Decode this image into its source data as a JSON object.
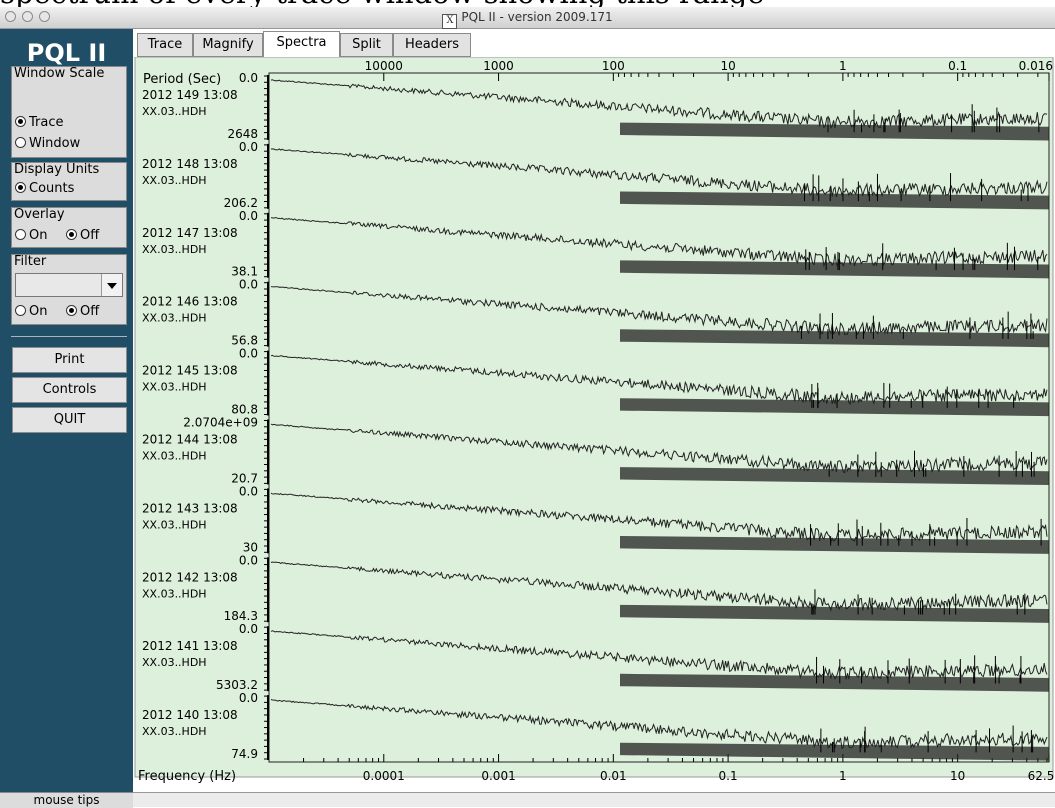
{
  "window": {
    "title": "PQL II - version 2009.171",
    "x_glyph": "X",
    "caption_fragment": "spectrum of every trace window showing this range"
  },
  "sidebar": {
    "logo": "PQL II",
    "window_scale": {
      "title": "Window Scale",
      "options": [
        "Trace",
        "Window"
      ],
      "selected": "Trace"
    },
    "display_units": {
      "title": "Display Units",
      "options": [
        "Counts"
      ],
      "selected": "Counts"
    },
    "overlay": {
      "title": "Overlay",
      "on_label": "On",
      "off_label": "Off",
      "selected": "Off"
    },
    "filter": {
      "title": "Filter",
      "value": "",
      "on_label": "On",
      "off_label": "Off",
      "selected": "Off"
    },
    "buttons": {
      "print": "Print",
      "controls": "Controls",
      "quit": "QUIT"
    },
    "mouse_tips": "mouse tips"
  },
  "tabs": [
    {
      "label": "Trace",
      "active": false
    },
    {
      "label": "Magnify",
      "active": false
    },
    {
      "label": "Spectra",
      "active": true
    },
    {
      "label": "Split",
      "active": false
    },
    {
      "label": "Headers",
      "active": false
    }
  ],
  "plot": {
    "background": "#dcf0dc",
    "trace_color": "#222222",
    "period_label": "Period (Sec)",
    "frequency_label": "Frequency (Hz)",
    "period_ticks": [
      "10000",
      "1000",
      "100",
      "10",
      "1",
      "0.1",
      "0.016"
    ],
    "frequency_ticks": [
      "0.0001",
      "0.001",
      "0.01",
      "0.1",
      "1",
      "10",
      "62.5"
    ],
    "traces": [
      {
        "date": "2012 149 13:08",
        "channel": "XX.03..HDH",
        "top_value": "0.0",
        "bottom_value": "2648"
      },
      {
        "date": "2012 148 13:08",
        "channel": "XX.03..HDH",
        "top_value": "0.0",
        "bottom_value": "206.2"
      },
      {
        "date": "2012 147 13:08",
        "channel": "XX.03..HDH",
        "top_value": "0.0",
        "bottom_value": "38.1"
      },
      {
        "date": "2012 146 13:08",
        "channel": "XX.03..HDH",
        "top_value": "0.0",
        "bottom_value": "56.8"
      },
      {
        "date": "2012 145 13:08",
        "channel": "XX.03..HDH",
        "top_value": "0.0",
        "bottom_value": "80.8"
      },
      {
        "date": "2012 144 13:08",
        "channel": "XX.03..HDH",
        "top_value": "2.0704e+09",
        "bottom_value": "20.7"
      },
      {
        "date": "2012 143 13:08",
        "channel": "XX.03..HDH",
        "top_value": "0.0",
        "bottom_value": "30"
      },
      {
        "date": "2012 142 13:08",
        "channel": "XX.03..HDH",
        "top_value": "0.0",
        "bottom_value": "184.3"
      },
      {
        "date": "2012 141 13:08",
        "channel": "XX.03..HDH",
        "top_value": "0.0",
        "bottom_value": "5303.2"
      },
      {
        "date": "2012 140 13:08",
        "channel": "XX.03..HDH",
        "top_value": "0.0",
        "bottom_value": "74.9"
      }
    ]
  },
  "colors": {
    "sidebar": "#1f4e66",
    "panel": "#dcdcdc",
    "plot_background": "#dcf0dc"
  }
}
